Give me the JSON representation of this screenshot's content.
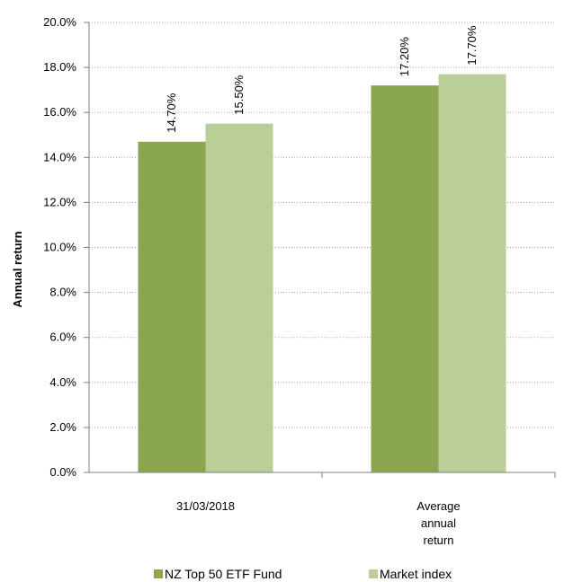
{
  "chart_data": {
    "type": "bar",
    "categories": [
      "31/03/2018",
      "Average annual return"
    ],
    "category_label_lines": [
      [
        "31/03/2018"
      ],
      [
        "Average",
        "annual",
        "return"
      ]
    ],
    "series": [
      {
        "name": "NZ Top 50 ETF Fund",
        "values": [
          14.7,
          17.2
        ],
        "labels": [
          "14.70%",
          "17.20%"
        ],
        "color": "#8aa64e"
      },
      {
        "name": "Market index",
        "values": [
          15.5,
          17.7
        ],
        "labels": [
          "15.50%",
          "17.70%"
        ],
        "color": "#b9cf97"
      }
    ],
    "ylabel": "Annual return",
    "ylim": [
      0,
      20
    ],
    "yticks": [
      0,
      2,
      4,
      6,
      8,
      10,
      12,
      14,
      16,
      18,
      20
    ],
    "ytick_labels": [
      "0.0%",
      "2.0%",
      "4.0%",
      "6.0%",
      "8.0%",
      "10.0%",
      "12.0%",
      "14.0%",
      "16.0%",
      "18.0%",
      "20.0%"
    ],
    "grid": "horizontal-dotted",
    "legend_position": "bottom",
    "gridline_color": "#a6a6a6",
    "axis_color": "#7f7f7f"
  }
}
